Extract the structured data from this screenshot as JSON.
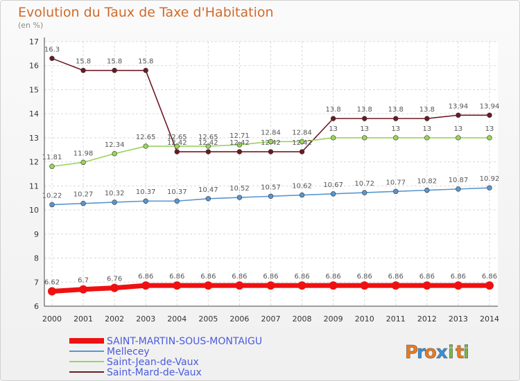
{
  "chart_data": {
    "type": "line",
    "title": "Evolution du Taux de Taxe d'Habitation",
    "subtitle": "(en %)",
    "x": [
      "2000",
      "2001",
      "2002",
      "2003",
      "2004",
      "2005",
      "2006",
      "2007",
      "2008",
      "2009",
      "2010",
      "2011",
      "2012",
      "2013",
      "2014"
    ],
    "ylim": [
      6,
      17
    ],
    "yticks": [
      "6",
      "7",
      "8",
      "9",
      "10",
      "11",
      "12",
      "13",
      "14",
      "15",
      "16",
      "17"
    ],
    "series": [
      {
        "name": "Saint-Mard-de-Vaux",
        "color": "#6b1a22",
        "values": [
          16.3,
          15.8,
          15.8,
          15.8,
          12.42,
          12.42,
          12.42,
          12.42,
          12.42,
          13.8,
          13.8,
          13.8,
          13.8,
          13.94,
          13.94
        ],
        "labels": [
          "16.3",
          "15.8",
          "15.8",
          "15.8",
          "12.42",
          "12.42",
          "12.42",
          "12.42",
          "12.42",
          "13.8",
          "13.8",
          "13.8",
          "13.8",
          "13.94",
          "13.94"
        ]
      },
      {
        "name": "Saint-Jean-de-Vaux",
        "color": "#9ad45a",
        "values": [
          11.81,
          11.98,
          12.34,
          12.65,
          12.65,
          12.65,
          12.71,
          12.84,
          12.84,
          13,
          13,
          13,
          13,
          13,
          13
        ],
        "labels": [
          "11.81",
          "11.98",
          "12.34",
          "12.65",
          "12.65",
          "12.65",
          "12.71",
          "12.84",
          "12.84",
          "13",
          "13",
          "13",
          "13",
          "13",
          "13"
        ]
      },
      {
        "name": "Mellecey",
        "color": "#5a96cc",
        "values": [
          10.22,
          10.27,
          10.32,
          10.37,
          10.37,
          10.47,
          10.52,
          10.57,
          10.62,
          10.67,
          10.72,
          10.77,
          10.82,
          10.87,
          10.92
        ],
        "labels": [
          "10.22",
          "10.27",
          "10.32",
          "10.37",
          "10.37",
          "10.47",
          "10.52",
          "10.57",
          "10.62",
          "10.67",
          "10.72",
          "10.77",
          "10.82",
          "10.87",
          "10.92"
        ]
      },
      {
        "name": "SAINT-MARTIN-SOUS-MONTAIGU",
        "color": "#ee1111",
        "values": [
          6.62,
          6.7,
          6.76,
          6.86,
          6.86,
          6.86,
          6.86,
          6.86,
          6.86,
          6.86,
          6.86,
          6.86,
          6.86,
          6.86,
          6.86
        ],
        "labels": [
          "6.62",
          "6.7",
          "6.76",
          "6.86",
          "6.86",
          "6.86",
          "6.86",
          "6.86",
          "6.86",
          "6.86",
          "6.86",
          "6.86",
          "6.86",
          "6.86",
          "6.86"
        ]
      }
    ],
    "legend": [
      {
        "name": "SAINT-MARTIN-SOUS-MONTAIGU",
        "color": "#ee1111",
        "thick": true
      },
      {
        "name": "Mellecey",
        "color": "#5a96cc"
      },
      {
        "name": "Saint-Jean-de-Vaux",
        "color": "#9ad45a"
      },
      {
        "name": "Saint-Mard-de-Vaux",
        "color": "#6b1a22"
      }
    ],
    "legend_position": "bottom-left"
  },
  "logo": {
    "letters": [
      "P",
      "r",
      "o",
      "x",
      "i",
      "t",
      "i"
    ],
    "colors": [
      "#e87a1e",
      "#3a8fd6",
      "#e87a1e",
      "#3a8fd6",
      "#7ab648",
      "#e87a1e",
      "#7ab648"
    ]
  }
}
